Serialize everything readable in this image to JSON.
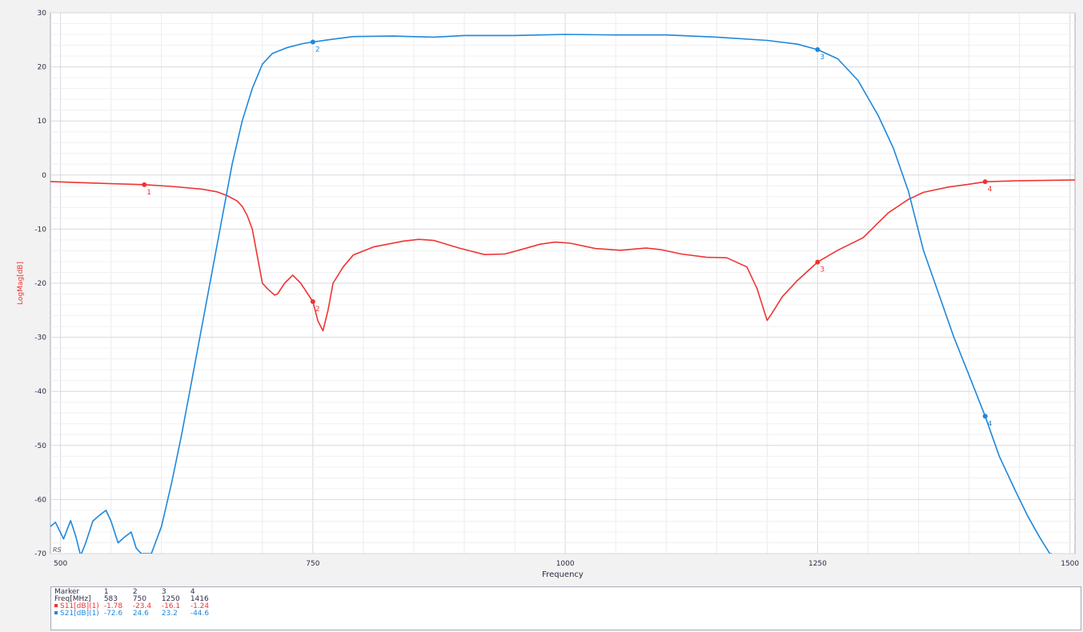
{
  "chart_data": {
    "type": "line",
    "xlabel": "Frequency",
    "ylabel": "LogMag[dB]",
    "xlim": [
      490,
      1505
    ],
    "ylim": [
      -70,
      30
    ],
    "x_ticks": [
      "500",
      "750",
      "1000",
      "1250",
      "1500"
    ],
    "y_ticks": [
      "30",
      "20",
      "10",
      "0",
      "-10",
      "-20",
      "-30",
      "-40",
      "-50",
      "-60",
      "-70"
    ],
    "grid": true,
    "corner_label": "RS",
    "series": [
      {
        "name": "S11[dB](1)",
        "color": "#ef3434",
        "points": [
          [
            490,
            -1.2
          ],
          [
            520,
            -1.4
          ],
          [
            550,
            -1.6
          ],
          [
            583,
            -1.78
          ],
          [
            610,
            -2.1
          ],
          [
            640,
            -2.6
          ],
          [
            655,
            -3.1
          ],
          [
            665,
            -3.8
          ],
          [
            675,
            -4.8
          ],
          [
            680,
            -5.8
          ],
          [
            685,
            -7.5
          ],
          [
            690,
            -10
          ],
          [
            695,
            -15
          ],
          [
            700,
            -20
          ],
          [
            705,
            -21
          ],
          [
            712,
            -22.2
          ],
          [
            715,
            -22
          ],
          [
            722,
            -20
          ],
          [
            730,
            -18.5
          ],
          [
            738,
            -20
          ],
          [
            745,
            -22
          ],
          [
            750,
            -23.4
          ],
          [
            755,
            -27
          ],
          [
            760,
            -28.8
          ],
          [
            765,
            -25
          ],
          [
            770,
            -20
          ],
          [
            780,
            -17
          ],
          [
            790,
            -14.8
          ],
          [
            810,
            -13.3
          ],
          [
            840,
            -12.2
          ],
          [
            855,
            -11.9
          ],
          [
            870,
            -12.1
          ],
          [
            895,
            -13.5
          ],
          [
            920,
            -14.7
          ],
          [
            940,
            -14.6
          ],
          [
            960,
            -13.6
          ],
          [
            975,
            -12.8
          ],
          [
            990,
            -12.4
          ],
          [
            1005,
            -12.6
          ],
          [
            1030,
            -13.6
          ],
          [
            1055,
            -13.9
          ],
          [
            1080,
            -13.5
          ],
          [
            1095,
            -13.8
          ],
          [
            1115,
            -14.6
          ],
          [
            1140,
            -15.2
          ],
          [
            1160,
            -15.3
          ],
          [
            1180,
            -17
          ],
          [
            1190,
            -21
          ],
          [
            1200,
            -26.9
          ],
          [
            1205,
            -25.5
          ],
          [
            1215,
            -22.5
          ],
          [
            1230,
            -19.5
          ],
          [
            1250,
            -16.1
          ],
          [
            1270,
            -13.9
          ],
          [
            1295,
            -11.6
          ],
          [
            1320,
            -7
          ],
          [
            1340,
            -4.5
          ],
          [
            1355,
            -3.2
          ],
          [
            1380,
            -2.2
          ],
          [
            1400,
            -1.7
          ],
          [
            1416,
            -1.24
          ],
          [
            1450,
            -1.05
          ],
          [
            1505,
            -0.9
          ]
        ]
      },
      {
        "name": "S21[dB](1)",
        "color": "#1e88dc",
        "points": [
          [
            490,
            -65
          ],
          [
            495,
            -64.2
          ],
          [
            503,
            -67.3
          ],
          [
            510,
            -63.9
          ],
          [
            515,
            -66.7
          ],
          [
            520,
            -70.4
          ],
          [
            525,
            -68
          ],
          [
            532,
            -64
          ],
          [
            538,
            -63
          ],
          [
            545,
            -62
          ],
          [
            550,
            -64
          ],
          [
            557,
            -68
          ],
          [
            563,
            -67
          ],
          [
            570,
            -66
          ],
          [
            575,
            -69
          ],
          [
            580,
            -70
          ],
          [
            580,
            -70
          ],
          [
            590,
            -70
          ],
          [
            600,
            -65
          ],
          [
            610,
            -57
          ],
          [
            620,
            -48
          ],
          [
            630,
            -38
          ],
          [
            640,
            -28
          ],
          [
            650,
            -18
          ],
          [
            660,
            -8
          ],
          [
            670,
            2
          ],
          [
            680,
            10
          ],
          [
            690,
            16
          ],
          [
            700,
            20.5
          ],
          [
            710,
            22.5
          ],
          [
            725,
            23.6
          ],
          [
            740,
            24.3
          ],
          [
            750,
            24.6
          ],
          [
            765,
            25
          ],
          [
            790,
            25.6
          ],
          [
            830,
            25.7
          ],
          [
            870,
            25.5
          ],
          [
            900,
            25.8
          ],
          [
            950,
            25.8
          ],
          [
            1000,
            26
          ],
          [
            1050,
            25.9
          ],
          [
            1100,
            25.9
          ],
          [
            1150,
            25.5
          ],
          [
            1200,
            24.9
          ],
          [
            1230,
            24.2
          ],
          [
            1250,
            23.2
          ],
          [
            1270,
            21.5
          ],
          [
            1290,
            17.5
          ],
          [
            1310,
            11
          ],
          [
            1325,
            5
          ],
          [
            1340,
            -3
          ],
          [
            1355,
            -14
          ],
          [
            1370,
            -22
          ],
          [
            1385,
            -30
          ],
          [
            1400,
            -37
          ],
          [
            1416,
            -44.6
          ],
          [
            1430,
            -52
          ],
          [
            1445,
            -58
          ],
          [
            1458,
            -63
          ],
          [
            1470,
            -67
          ],
          [
            1480,
            -70
          ],
          [
            1482,
            -70
          ]
        ]
      }
    ],
    "markers": [
      {
        "label": "1",
        "x": 583,
        "s11": -1.78,
        "s21": -72.6
      },
      {
        "label": "2",
        "x": 750,
        "s11": -23.4,
        "s21": 24.6
      },
      {
        "label": "3",
        "x": 1250,
        "s11": -16.1,
        "s21": 23.2
      },
      {
        "label": "4",
        "x": 1416,
        "s11": -1.24,
        "s21": -44.6
      }
    ]
  },
  "table": {
    "header_label": "Marker",
    "marker_ids": [
      "1",
      "2",
      "3",
      "4"
    ],
    "freq_label": "Freq[MHz]",
    "freq_values": [
      "583",
      "750",
      "1250",
      "1416"
    ],
    "s11_label": "S11[dB](1)",
    "s11_values": [
      "-1.78",
      "-23.4",
      "-16.1",
      "-1.24"
    ],
    "s21_label": "S21[dB](1)",
    "s21_values": [
      "-72.6",
      "24.6",
      "23.2",
      "-44.6"
    ],
    "s11_color": "#ef3434",
    "s21_color": "#1e88dc"
  }
}
